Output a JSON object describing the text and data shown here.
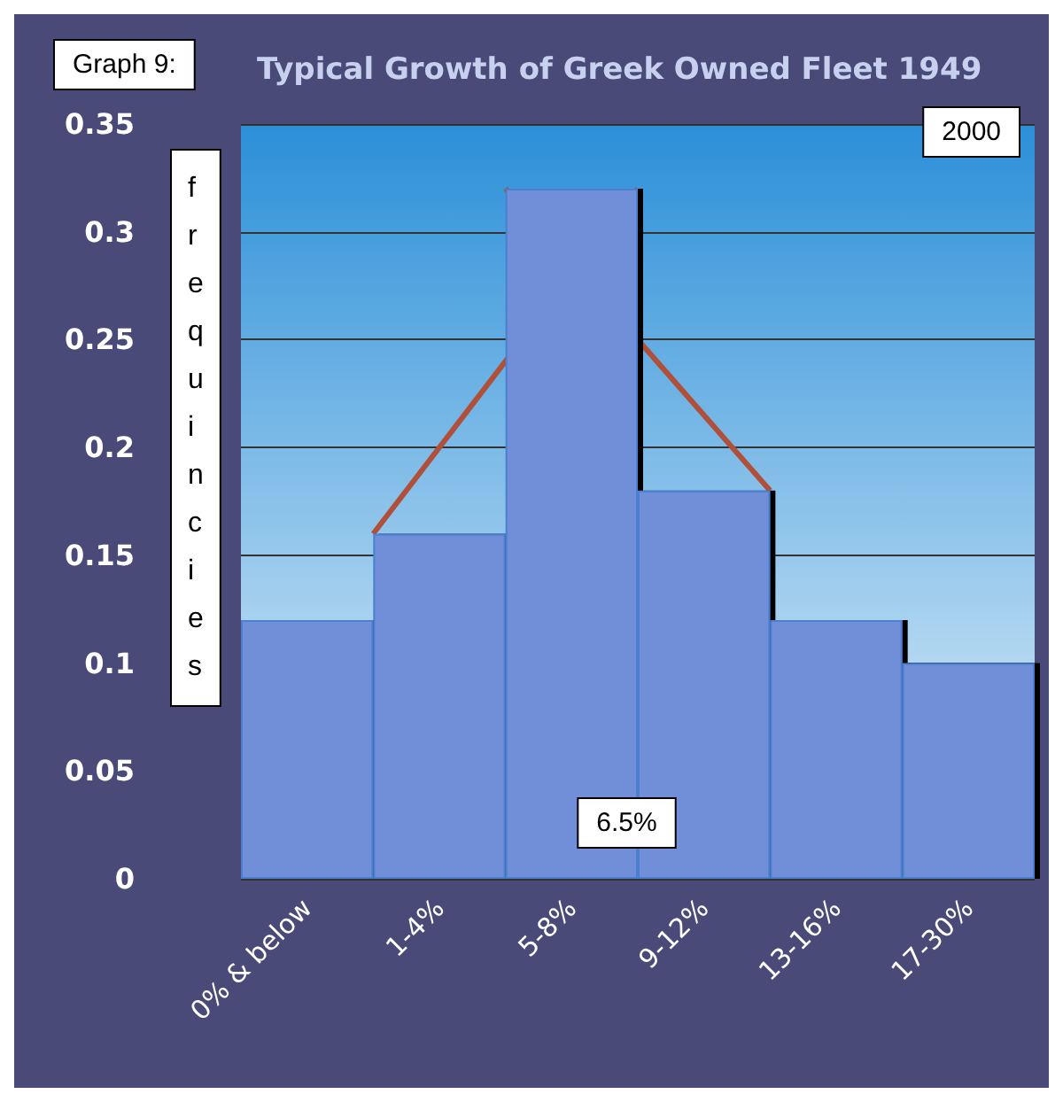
{
  "chart_data": {
    "type": "bar",
    "title": "Typical Growth of Greek Owned Fleet 1949",
    "ylabel": "frequincies",
    "annotations": [
      "Graph 9:",
      "2000",
      "6.5%"
    ],
    "categories": [
      "0% & below",
      "1-4%",
      "5-8%",
      "9-12%",
      "13-16%",
      "17-30%"
    ],
    "values": [
      0.12,
      0.16,
      0.32,
      0.18,
      0.12,
      0.1
    ],
    "color": "#6f8fd8",
    "ylim": [
      0,
      0.35
    ],
    "yticks": [
      0,
      0.05,
      0.1,
      0.15,
      0.2,
      0.25,
      0.3,
      0.35
    ],
    "grid": "y"
  }
}
